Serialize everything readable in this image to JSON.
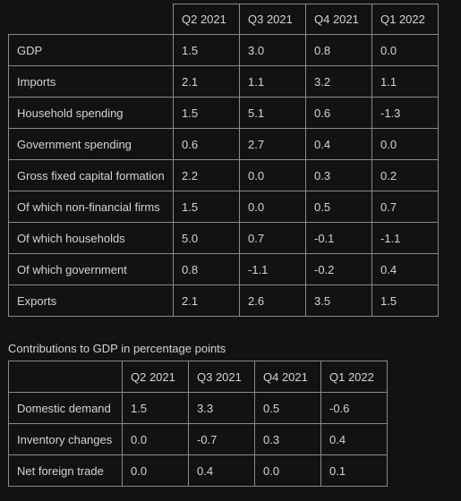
{
  "table1": {
    "headers": [
      "",
      "Q2 2021",
      "Q3 2021",
      "Q4 2021",
      "Q1 2022"
    ],
    "rows": [
      [
        "GDP",
        "1.5",
        "3.0",
        "0.8",
        "0.0"
      ],
      [
        "Imports",
        "2.1",
        "1.1",
        "3.2",
        "1.1"
      ],
      [
        "Household spending",
        "1.5",
        "5.1",
        "0.6",
        "-1.3"
      ],
      [
        "Government spending",
        "0.6",
        "2.7",
        "0.4",
        "0.0"
      ],
      [
        "Gross fixed capital formation",
        "2.2",
        "0.0",
        "0.3",
        "0.2"
      ],
      [
        "Of which non-financial firms",
        "1.5",
        "0.0",
        "0.5",
        "0.7"
      ],
      [
        "Of which households",
        "5.0",
        "0.7",
        "-0.1",
        "-1.1"
      ],
      [
        "Of which government",
        "0.8",
        "-1.1",
        "-0.2",
        "0.4"
      ],
      [
        "Exports",
        "2.1",
        "2.6",
        "3.5",
        "1.5"
      ]
    ]
  },
  "table2": {
    "caption": "Contributions to GDP in percentage points",
    "headers": [
      "",
      "Q2 2021",
      "Q3 2021",
      "Q4 2021",
      "Q1 2022"
    ],
    "rows": [
      [
        "Domestic demand",
        "1.5",
        "3.3",
        "0.5",
        "-0.6"
      ],
      [
        "Inventory changes",
        "0.0",
        "-0.7",
        "0.3",
        "0.4"
      ],
      [
        "Net foreign trade",
        "0.0",
        "0.4",
        "0.0",
        "0.1"
      ]
    ]
  }
}
